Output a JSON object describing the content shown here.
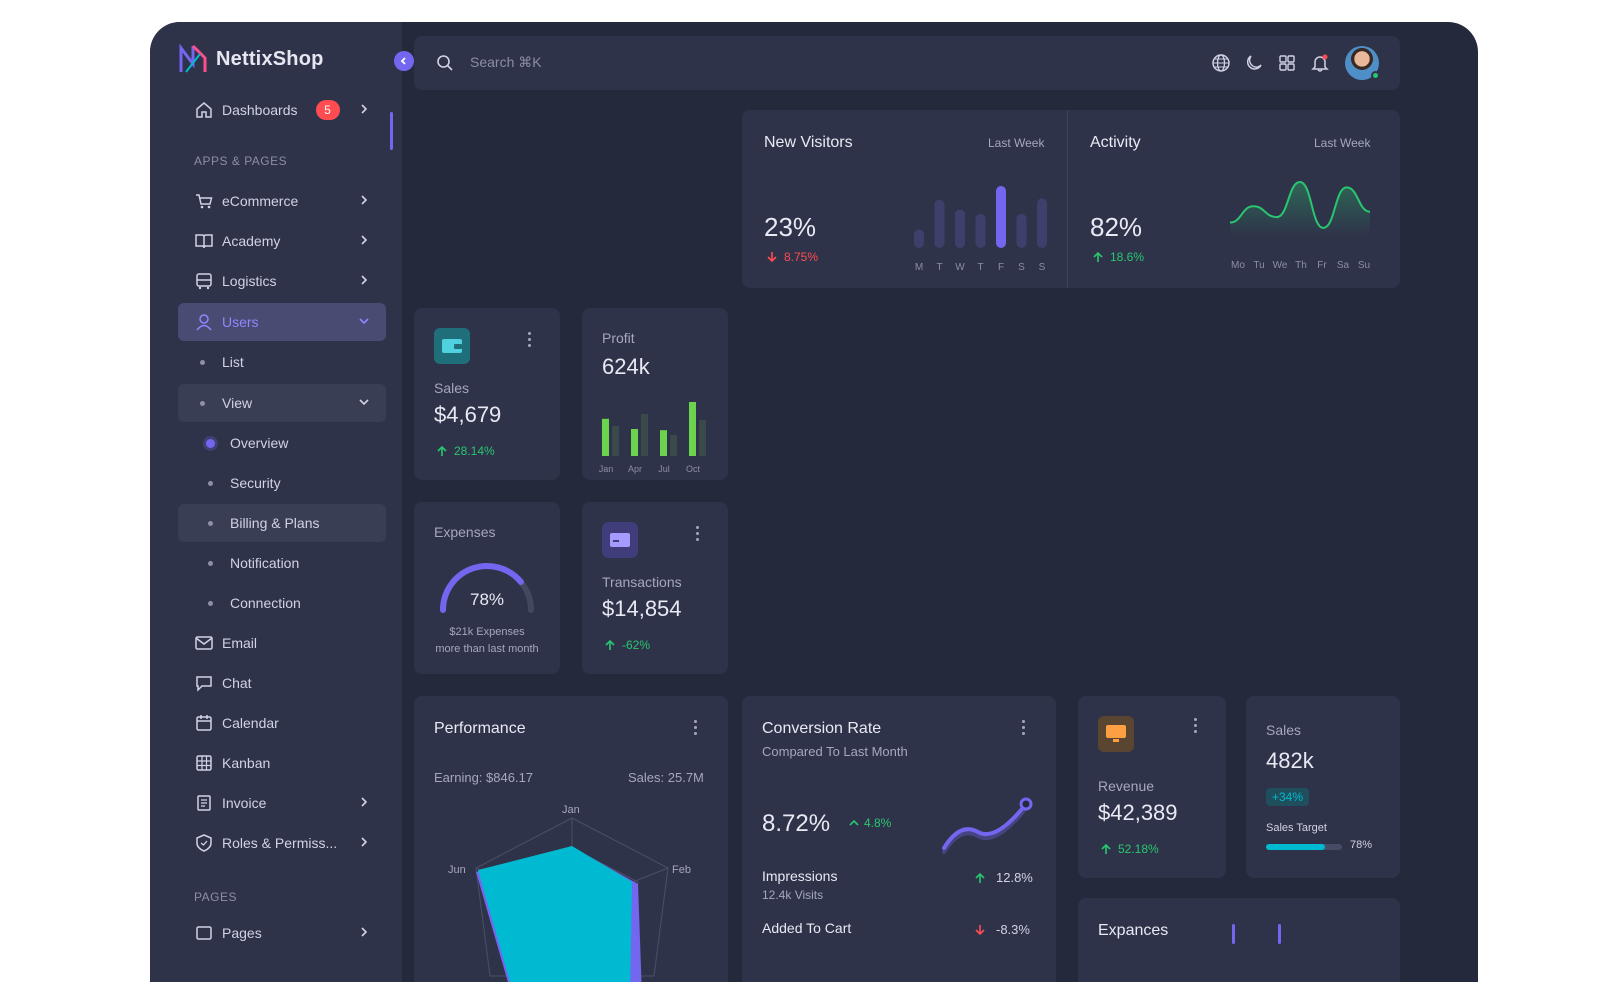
{
  "app": {
    "name": "NettixShop"
  },
  "sidebar": {
    "dashboards": {
      "label": "Dashboards",
      "badge": "5"
    },
    "section_apps": "APPS & PAGES",
    "ecommerce": "eCommerce",
    "academy": "Academy",
    "logistics": "Logistics",
    "users": "Users",
    "users_list": "List",
    "users_view": "View",
    "overview": "Overview",
    "security": "Security",
    "billing": "Billing & Plans",
    "notification": "Notification",
    "connection": "Connection",
    "email": "Email",
    "chat": "Chat",
    "calendar": "Calendar",
    "kanban": "Kanban",
    "invoice": "Invoice",
    "roles": "Roles & Permiss...",
    "section_pages": "PAGES",
    "pages": "Pages"
  },
  "topbar": {
    "search_placeholder": "Search ⌘K"
  },
  "new_visitors": {
    "title": "New Visitors",
    "period": "Last Week",
    "value": "23%",
    "change": "8.75%",
    "days": [
      "M",
      "T",
      "W",
      "T",
      "F",
      "S",
      "S"
    ],
    "bars": [
      0.3,
      0.78,
      0.62,
      0.55,
      1.0,
      0.55,
      0.8
    ]
  },
  "activity": {
    "title": "Activity",
    "period": "Last Week",
    "value": "82%",
    "change": "18.6%",
    "days": [
      "Mo",
      "Tu",
      "We",
      "Th",
      "Fr",
      "Sa",
      "Su"
    ],
    "points": [
      0.25,
      0.55,
      0.35,
      1.0,
      0.15,
      0.9,
      0.45
    ]
  },
  "sales_small": {
    "label": "Sales",
    "value": "$4,679",
    "change": "28.14%"
  },
  "profit": {
    "label": "Profit",
    "value": "624k",
    "months": [
      "Jan",
      "Apr",
      "Jul",
      "Oct"
    ],
    "bars": [
      0.62,
      0.5,
      0.45,
      0.7,
      0.43,
      0.35,
      0.9,
      0.6
    ]
  },
  "expenses": {
    "label": "Expenses",
    "percent": "78%",
    "fill": 0.78,
    "note_1": "$21k Expenses",
    "note_2": "more than last month"
  },
  "transactions": {
    "label": "Transactions",
    "value": "$14,854",
    "change": "-62%"
  },
  "performance": {
    "title": "Performance",
    "earning": "Earning: $846.17",
    "sales": "Sales: 25.7M",
    "axis": {
      "top": "Jan",
      "right": "Feb",
      "left": "Jun"
    }
  },
  "conversion": {
    "title": "Conversion Rate",
    "subtitle": "Compared To Last Month",
    "value": "8.72%",
    "change": "4.8%",
    "impressions_label": "Impressions",
    "impressions_sub": "12.4k Visits",
    "impressions_change": "12.8%",
    "cart_label": "Added To Cart",
    "cart_change": "-8.3%"
  },
  "revenue": {
    "label": "Revenue",
    "value": "$42,389",
    "change": "52.18%"
  },
  "sales_target": {
    "label": "Sales",
    "value": "482k",
    "badge": "+34%",
    "target_label": "Sales Target",
    "target_percent": "78%",
    "fill": 0.78
  },
  "expenses_bottom": {
    "title": "Expances"
  },
  "colors": {
    "primary": "#7367f0",
    "success": "#28c76f",
    "danger": "#ff4c51",
    "info": "#00bad1",
    "warning": "#ff9f43"
  }
}
